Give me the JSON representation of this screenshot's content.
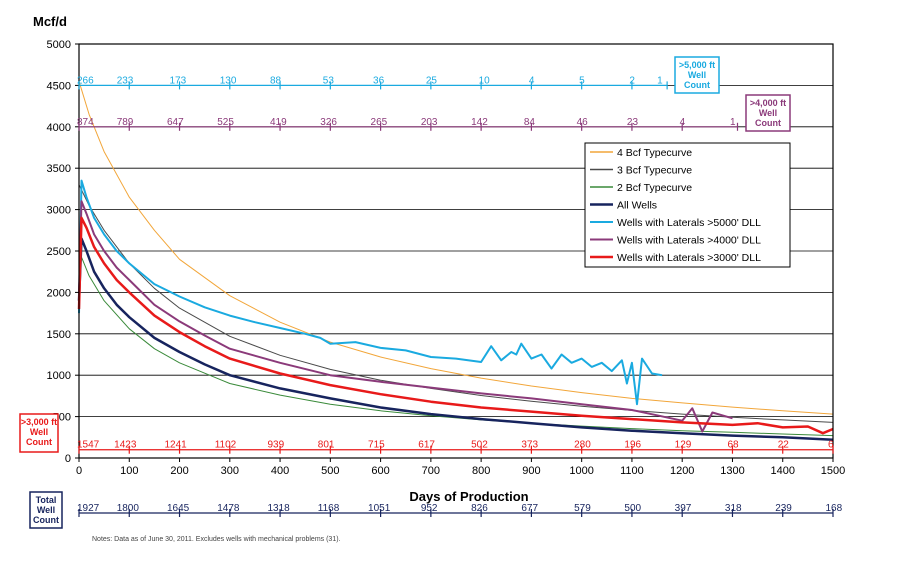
{
  "chart_data": {
    "type": "line",
    "ylabel": "Mcf/d",
    "xlabel": "Days of Production",
    "xlim": [
      0,
      1500
    ],
    "ylim": [
      0,
      5000
    ],
    "x_ticks": [
      0,
      100,
      200,
      300,
      400,
      500,
      600,
      700,
      800,
      900,
      1000,
      1100,
      1200,
      1300,
      1400,
      1500
    ],
    "y_ticks": [
      0,
      500,
      1000,
      1500,
      2000,
      2500,
      3000,
      3500,
      4000,
      4500,
      5000
    ],
    "grid": "horizontal",
    "legend_position": "center-right",
    "note": "Notes:   Data as of June 30, 2011. Excludes wells with mechanical problems (31).",
    "series": [
      {
        "name": "4 Bcf Typecurve",
        "color": "#f2a63a",
        "width": 1,
        "x": [
          0,
          20,
          50,
          100,
          150,
          200,
          300,
          400,
          500,
          600,
          700,
          800,
          900,
          1000,
          1100,
          1200,
          1300,
          1400,
          1500
        ],
        "y": [
          4550,
          4150,
          3700,
          3150,
          2750,
          2400,
          1960,
          1640,
          1400,
          1220,
          1080,
          965,
          870,
          790,
          720,
          665,
          615,
          570,
          530
        ]
      },
      {
        "name": "3 Bcf Typecurve",
        "color": "#4a4a4a",
        "width": 1,
        "x": [
          0,
          20,
          50,
          100,
          150,
          200,
          300,
          400,
          500,
          600,
          700,
          800,
          900,
          1000,
          1100,
          1200,
          1300,
          1400,
          1500
        ],
        "y": [
          3300,
          3050,
          2750,
          2350,
          2050,
          1810,
          1470,
          1240,
          1070,
          940,
          840,
          755,
          685,
          625,
          575,
          530,
          492,
          460,
          430
        ]
      },
      {
        "name": "2 Bcf Typecurve",
        "color": "#3a8a3a",
        "width": 1,
        "x": [
          0,
          20,
          50,
          100,
          150,
          200,
          300,
          400,
          500,
          600,
          700,
          800,
          900,
          1000,
          1100,
          1200,
          1300,
          1400,
          1500
        ],
        "y": [
          2500,
          2200,
          1900,
          1560,
          1320,
          1150,
          900,
          760,
          650,
          570,
          510,
          460,
          420,
          385,
          355,
          330,
          310,
          290,
          270
        ]
      },
      {
        "name": "All Wells",
        "color": "#17245e",
        "width": 2.5,
        "x": [
          0,
          5,
          15,
          30,
          50,
          75,
          100,
          150,
          200,
          250,
          300,
          400,
          500,
          600,
          700,
          800,
          900,
          1000,
          1100,
          1200,
          1300,
          1400,
          1500
        ],
        "y": [
          1900,
          2650,
          2500,
          2250,
          2050,
          1850,
          1700,
          1450,
          1280,
          1130,
          1000,
          840,
          720,
          610,
          530,
          470,
          420,
          370,
          330,
          300,
          270,
          250,
          220
        ]
      },
      {
        "name": "Wells with Laterals >5000' DLL",
        "color": "#1aaae0",
        "width": 2,
        "x": [
          0,
          5,
          15,
          30,
          50,
          75,
          100,
          150,
          200,
          250,
          300,
          350,
          400,
          450,
          480,
          500,
          550,
          600,
          650,
          700,
          750,
          800,
          820,
          840,
          860,
          870,
          880,
          900,
          920,
          940,
          960,
          980,
          1000,
          1020,
          1040,
          1060,
          1080,
          1090,
          1100,
          1110,
          1120,
          1140,
          1160
        ],
        "y": [
          1750,
          3350,
          3150,
          2900,
          2700,
          2500,
          2350,
          2100,
          1950,
          1820,
          1720,
          1640,
          1570,
          1500,
          1450,
          1380,
          1400,
          1330,
          1300,
          1220,
          1200,
          1160,
          1350,
          1180,
          1280,
          1250,
          1380,
          1200,
          1250,
          1080,
          1250,
          1150,
          1200,
          1100,
          1150,
          1050,
          1180,
          900,
          1150,
          650,
          1200,
          1020,
          1000
        ]
      },
      {
        "name": "Wells with Laterals >4000' DLL",
        "color": "#8b3a7a",
        "width": 2,
        "x": [
          0,
          5,
          15,
          30,
          50,
          75,
          100,
          150,
          200,
          250,
          300,
          400,
          500,
          600,
          700,
          800,
          900,
          1000,
          1100,
          1200,
          1220,
          1240,
          1260,
          1300
        ],
        "y": [
          2000,
          3100,
          2950,
          2700,
          2500,
          2300,
          2150,
          1850,
          1650,
          1480,
          1320,
          1150,
          1000,
          920,
          850,
          780,
          720,
          650,
          580,
          450,
          600,
          320,
          550,
          480
        ]
      },
      {
        "name": "Wells with Laterals >3000' DLL",
        "color": "#e81a1a",
        "width": 2.5,
        "x": [
          0,
          5,
          15,
          30,
          50,
          75,
          100,
          150,
          200,
          250,
          300,
          400,
          500,
          600,
          700,
          800,
          900,
          1000,
          1100,
          1200,
          1300,
          1350,
          1400,
          1450,
          1480,
          1500
        ],
        "y": [
          1800,
          2900,
          2780,
          2550,
          2350,
          2150,
          2000,
          1720,
          1520,
          1350,
          1200,
          1020,
          880,
          770,
          680,
          610,
          560,
          510,
          470,
          430,
          400,
          420,
          370,
          380,
          300,
          350
        ]
      }
    ],
    "well_count_rows": [
      {
        "label": ">5,000 ft Well Count",
        "color": "#1aaae0",
        "y_level": 4500,
        "ticks": [
          0,
          100,
          200,
          300,
          400,
          500,
          600,
          700,
          800,
          900,
          1000,
          1100,
          1170
        ],
        "counts": [
          {
            "x": 0,
            "v": "266"
          },
          {
            "x": 75,
            "v": "233"
          },
          {
            "x": 180,
            "v": "173"
          },
          {
            "x": 280,
            "v": "130"
          },
          {
            "x": 380,
            "v": "88"
          },
          {
            "x": 485,
            "v": "53"
          },
          {
            "x": 585,
            "v": "36"
          },
          {
            "x": 690,
            "v": "25"
          },
          {
            "x": 795,
            "v": "10"
          },
          {
            "x": 895,
            "v": "4"
          },
          {
            "x": 995,
            "v": "5"
          },
          {
            "x": 1095,
            "v": "2"
          },
          {
            "x": 1150,
            "v": "1"
          }
        ]
      },
      {
        "label": ">4,000 ft Well Count",
        "color": "#8b3a7a",
        "y_level": 4000,
        "ticks": [
          0,
          100,
          200,
          300,
          400,
          500,
          600,
          700,
          800,
          900,
          1000,
          1100,
          1200,
          1310
        ],
        "counts": [
          {
            "x": 0,
            "v": "874"
          },
          {
            "x": 75,
            "v": "789"
          },
          {
            "x": 175,
            "v": "647"
          },
          {
            "x": 275,
            "v": "525"
          },
          {
            "x": 380,
            "v": "419"
          },
          {
            "x": 480,
            "v": "326"
          },
          {
            "x": 580,
            "v": "265"
          },
          {
            "x": 680,
            "v": "203"
          },
          {
            "x": 780,
            "v": "142"
          },
          {
            "x": 885,
            "v": "84"
          },
          {
            "x": 990,
            "v": "46"
          },
          {
            "x": 1090,
            "v": "23"
          },
          {
            "x": 1195,
            "v": "4"
          },
          {
            "x": 1295,
            "v": "1"
          }
        ]
      },
      {
        "label": ">3,000 ft Well Count",
        "color": "#e81a1a",
        "y_level": 100,
        "ticks": [
          0,
          100,
          200,
          300,
          400,
          500,
          600,
          700,
          800,
          900,
          1000,
          1100,
          1200,
          1300,
          1400,
          1500
        ],
        "counts": [
          {
            "x": 0,
            "v": "1547"
          },
          {
            "x": 70,
            "v": "1423"
          },
          {
            "x": 170,
            "v": "1241"
          },
          {
            "x": 270,
            "v": "1102"
          },
          {
            "x": 375,
            "v": "939"
          },
          {
            "x": 475,
            "v": "801"
          },
          {
            "x": 575,
            "v": "715"
          },
          {
            "x": 675,
            "v": "617"
          },
          {
            "x": 780,
            "v": "502"
          },
          {
            "x": 880,
            "v": "373"
          },
          {
            "x": 985,
            "v": "280"
          },
          {
            "x": 1085,
            "v": "196"
          },
          {
            "x": 1185,
            "v": "129"
          },
          {
            "x": 1290,
            "v": "68"
          },
          {
            "x": 1390,
            "v": "22"
          },
          {
            "x": 1490,
            "v": "6"
          }
        ]
      },
      {
        "label": "Total Well Count",
        "color": "#17245e",
        "y_level": null,
        "ticks": [
          0,
          100,
          200,
          300,
          400,
          500,
          600,
          700,
          800,
          900,
          1000,
          1100,
          1200,
          1300,
          1400,
          1500
        ],
        "counts": [
          {
            "x": 0,
            "v": "1927"
          },
          {
            "x": 75,
            "v": "1800"
          },
          {
            "x": 175,
            "v": "1645"
          },
          {
            "x": 275,
            "v": "1478"
          },
          {
            "x": 375,
            "v": "1318"
          },
          {
            "x": 475,
            "v": "1168"
          },
          {
            "x": 575,
            "v": "1051"
          },
          {
            "x": 680,
            "v": "952"
          },
          {
            "x": 780,
            "v": "826"
          },
          {
            "x": 880,
            "v": "677"
          },
          {
            "x": 985,
            "v": "579"
          },
          {
            "x": 1085,
            "v": "500"
          },
          {
            "x": 1185,
            "v": "397"
          },
          {
            "x": 1285,
            "v": "318"
          },
          {
            "x": 1385,
            "v": "239"
          },
          {
            "x": 1485,
            "v": "168"
          }
        ]
      }
    ]
  }
}
